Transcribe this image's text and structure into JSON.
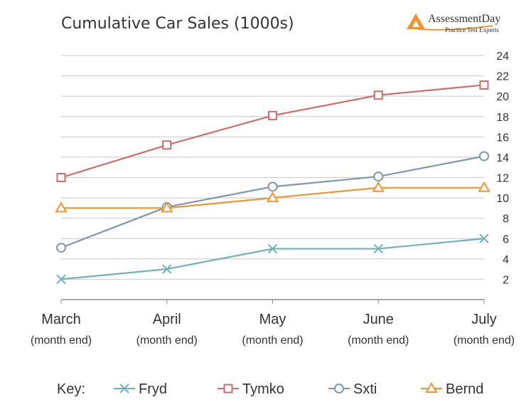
{
  "chart_data": {
    "type": "line",
    "title": "Cumulative Car Sales (1000s)",
    "categories": [
      "March",
      "April",
      "May",
      "June",
      "July"
    ],
    "category_sublabel": "(month end)",
    "yticks": [
      2,
      4,
      6,
      8,
      10,
      12,
      14,
      16,
      18,
      20,
      22,
      24
    ],
    "ylim": [
      0,
      24
    ],
    "grid": true,
    "y_axis_side": "right",
    "legend_position": "bottom",
    "legend_prefix": "Key:",
    "series": [
      {
        "name": "Fryd",
        "marker": "x",
        "color": "#6fb3b8",
        "values": [
          2,
          3,
          5,
          5,
          6
        ]
      },
      {
        "name": "Tymko",
        "marker": "square",
        "color": "#d36b6b",
        "values": [
          12,
          15.2,
          18.1,
          20.1,
          21.1
        ]
      },
      {
        "name": "Sxti",
        "marker": "circle",
        "color": "#7f97b2",
        "values": [
          5.1,
          9.1,
          11.1,
          12.1,
          14.1
        ]
      },
      {
        "name": "Bernd",
        "marker": "triangle",
        "color": "#f0952f",
        "values": [
          9,
          9,
          10,
          11,
          11
        ]
      }
    ]
  },
  "logo": {
    "name": "AssessmentDay",
    "tagline": "Practice Test Experts",
    "color": "#f0952f"
  }
}
